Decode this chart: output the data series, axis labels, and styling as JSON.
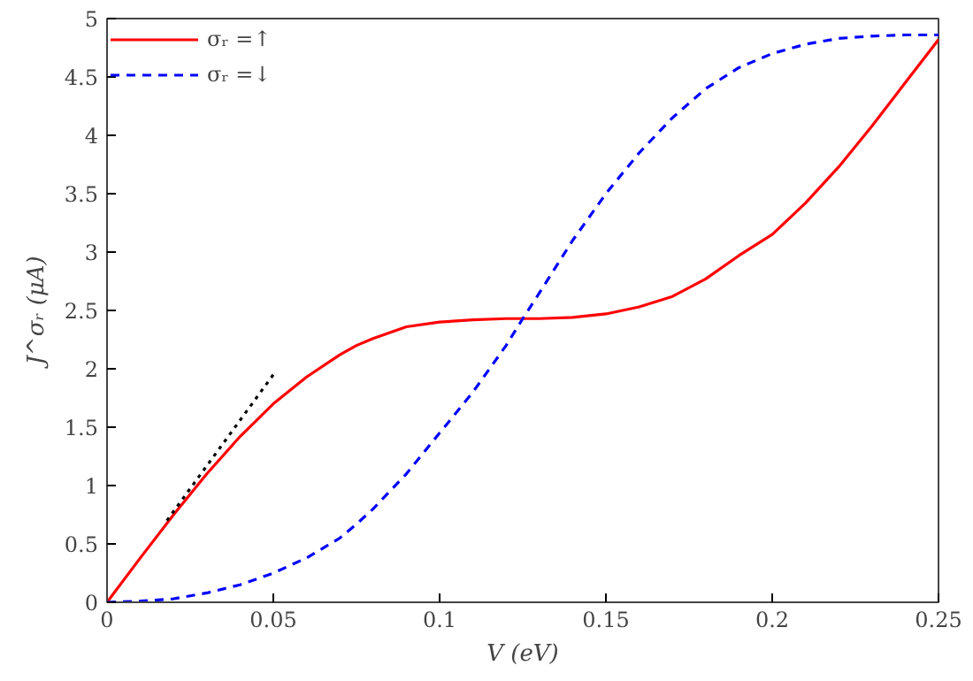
{
  "chart_data": {
    "type": "line",
    "xlabel": "V (eV)",
    "ylabel": "J^σᵣ (μA)",
    "xlim": [
      0,
      0.25
    ],
    "ylim": [
      0,
      5
    ],
    "xticks": [
      0,
      0.05,
      0.1,
      0.15,
      0.2,
      0.25
    ],
    "yticks": [
      0,
      0.5,
      1,
      1.5,
      2,
      2.5,
      3,
      3.5,
      4,
      4.5,
      5
    ],
    "grid": false,
    "legend": "top left",
    "marker": "none",
    "series": [
      {
        "name": "σᵣ =↑",
        "color": "#ff0000",
        "line_style": "solid",
        "x": [
          0,
          0.01,
          0.02,
          0.03,
          0.04,
          0.05,
          0.06,
          0.07,
          0.075,
          0.08,
          0.09,
          0.1,
          0.11,
          0.12,
          0.13,
          0.14,
          0.15,
          0.16,
          0.17,
          0.18,
          0.19,
          0.2,
          0.21,
          0.22,
          0.23,
          0.24,
          0.25
        ],
        "values": [
          0,
          0.38,
          0.75,
          1.1,
          1.42,
          1.7,
          1.93,
          2.12,
          2.2,
          2.26,
          2.36,
          2.4,
          2.42,
          2.43,
          2.43,
          2.44,
          2.47,
          2.53,
          2.62,
          2.77,
          2.97,
          3.15,
          3.42,
          3.73,
          4.08,
          4.45,
          4.82
        ]
      },
      {
        "name": "σᵣ =↓",
        "color": "#0000ff",
        "line_style": "dashed",
        "x": [
          0,
          0.01,
          0.02,
          0.03,
          0.04,
          0.05,
          0.06,
          0.07,
          0.075,
          0.08,
          0.09,
          0.1,
          0.11,
          0.12,
          0.125,
          0.13,
          0.14,
          0.15,
          0.16,
          0.17,
          0.18,
          0.19,
          0.2,
          0.21,
          0.22,
          0.23,
          0.24,
          0.25
        ],
        "values": [
          0,
          0.01,
          0.03,
          0.08,
          0.15,
          0.25,
          0.38,
          0.55,
          0.67,
          0.8,
          1.1,
          1.45,
          1.8,
          2.2,
          2.43,
          2.65,
          3.1,
          3.5,
          3.85,
          4.15,
          4.4,
          4.58,
          4.7,
          4.78,
          4.83,
          4.85,
          4.86,
          4.86
        ]
      },
      {
        "color": "#000000",
        "line_style": "dotted",
        "x": [
          0.018,
          0.05
        ],
        "values": [
          0.7,
          1.95
        ]
      }
    ]
  }
}
